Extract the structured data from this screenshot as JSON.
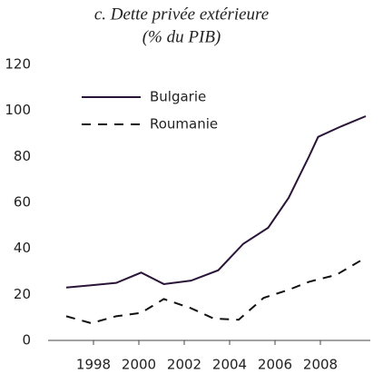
{
  "chart_data": {
    "type": "line",
    "title": "c. Dette privée extérieure",
    "subtitle": "(% du PIB)",
    "xlim": [
      1996,
      2010.2
    ],
    "xticks": [
      1998,
      2000,
      2002,
      2004,
      2006,
      2008
    ],
    "ylim": [
      0,
      120
    ],
    "yticks": [
      0,
      20,
      40,
      60,
      80,
      100,
      120
    ],
    "legend": "top-left",
    "series": [
      {
        "name": "Bulgarie",
        "color": "#2a1538",
        "dash": "solid",
        "x": [
          1996.8,
          1997.9,
          1999.0,
          2000.1,
          2001.1,
          2002.3,
          2003.5,
          2004.6,
          2005.7,
          2006.6,
          2007.5,
          2007.9,
          2008.9,
          2010.0
        ],
        "values": [
          23,
          24,
          25,
          29.5,
          24.5,
          26,
          30.5,
          42,
          49,
          62,
          80,
          88.5,
          93,
          97.5
        ]
      },
      {
        "name": "Roumanie",
        "color": "#111111",
        "dash": "dashed",
        "x": [
          1996.8,
          1997.9,
          1999.0,
          2000.1,
          2001.1,
          2002.3,
          2003.3,
          2004.4,
          2005.5,
          2006.6,
          2007.5,
          2008.7,
          2010.0
        ],
        "values": [
          10.5,
          7.5,
          10.5,
          12,
          18,
          14,
          9.5,
          9,
          18.5,
          22,
          25.5,
          28.5,
          36
        ]
      }
    ]
  }
}
